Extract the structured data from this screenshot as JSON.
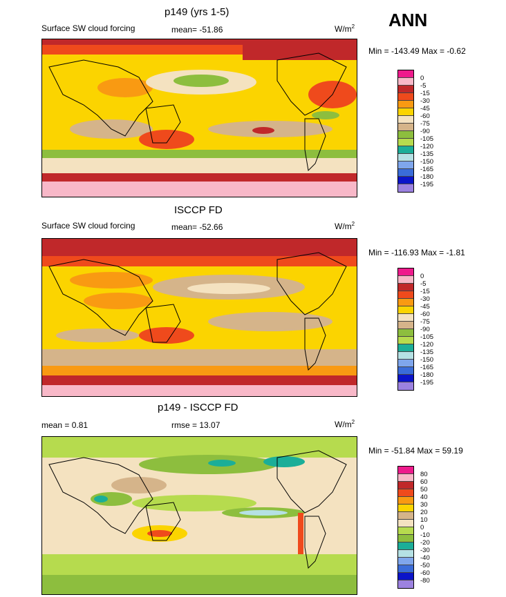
{
  "season": "ANN",
  "panels": [
    {
      "title": "p149 (yrs 1-5)",
      "left_label": "Surface SW cloud forcing",
      "center_label": "mean= -51.86",
      "units_base": "W/m",
      "units_sup": "2",
      "minmax": "Min = -143.49 Max =  -0.62",
      "levels": [
        "0",
        "-5",
        "-15",
        "-30",
        "-45",
        "-60",
        "-75",
        "-90",
        "-105",
        "-120",
        "-135",
        "-150",
        "-165",
        "-180",
        "-195"
      ],
      "colors": [
        "#ee1a8c",
        "#f8b8c8",
        "#c0282a",
        "#ef4a1c",
        "#f99a12",
        "#fbd400",
        "#f4e2c0",
        "#d5b48a",
        "#8dbe3e",
        "#b6db4e",
        "#1bae98",
        "#b5e1e4",
        "#7fa6ec",
        "#3a6cd9",
        "#0b14c9",
        "#9c82e0"
      ]
    },
    {
      "title": "ISCCP FD",
      "left_label": "Surface SW cloud forcing",
      "center_label": "mean= -52.66",
      "units_base": "W/m",
      "units_sup": "2",
      "minmax": "Min = -116.93 Max =  -1.81",
      "levels": [
        "0",
        "-5",
        "-15",
        "-30",
        "-45",
        "-60",
        "-75",
        "-90",
        "-105",
        "-120",
        "-135",
        "-150",
        "-165",
        "-180",
        "-195"
      ],
      "colors": [
        "#ee1a8c",
        "#f8b8c8",
        "#c0282a",
        "#ef4a1c",
        "#f99a12",
        "#fbd400",
        "#f4e2c0",
        "#d5b48a",
        "#8dbe3e",
        "#b6db4e",
        "#1bae98",
        "#b5e1e4",
        "#7fa6ec",
        "#3a6cd9",
        "#0b14c9",
        "#9c82e0"
      ]
    },
    {
      "title": "p149 - ISCCP FD",
      "left_label": "mean =   0.81",
      "center_label": "rmse =  13.07",
      "units_base": "W/m",
      "units_sup": "2",
      "minmax": "Min = -51.84 Max =  59.19",
      "levels": [
        "80",
        "60",
        "50",
        "40",
        "30",
        "20",
        "10",
        "0",
        "-10",
        "-20",
        "-30",
        "-40",
        "-50",
        "-60",
        "-80"
      ],
      "colors": [
        "#ee1a8c",
        "#f8b8c8",
        "#c0282a",
        "#ef4a1c",
        "#f99a12",
        "#fbd400",
        "#d5b48a",
        "#f4e2c0",
        "#b6db4e",
        "#8dbe3e",
        "#1bae98",
        "#b5e1e4",
        "#7fa6ec",
        "#3a6cd9",
        "#0b14c9",
        "#9c82e0"
      ]
    }
  ]
}
